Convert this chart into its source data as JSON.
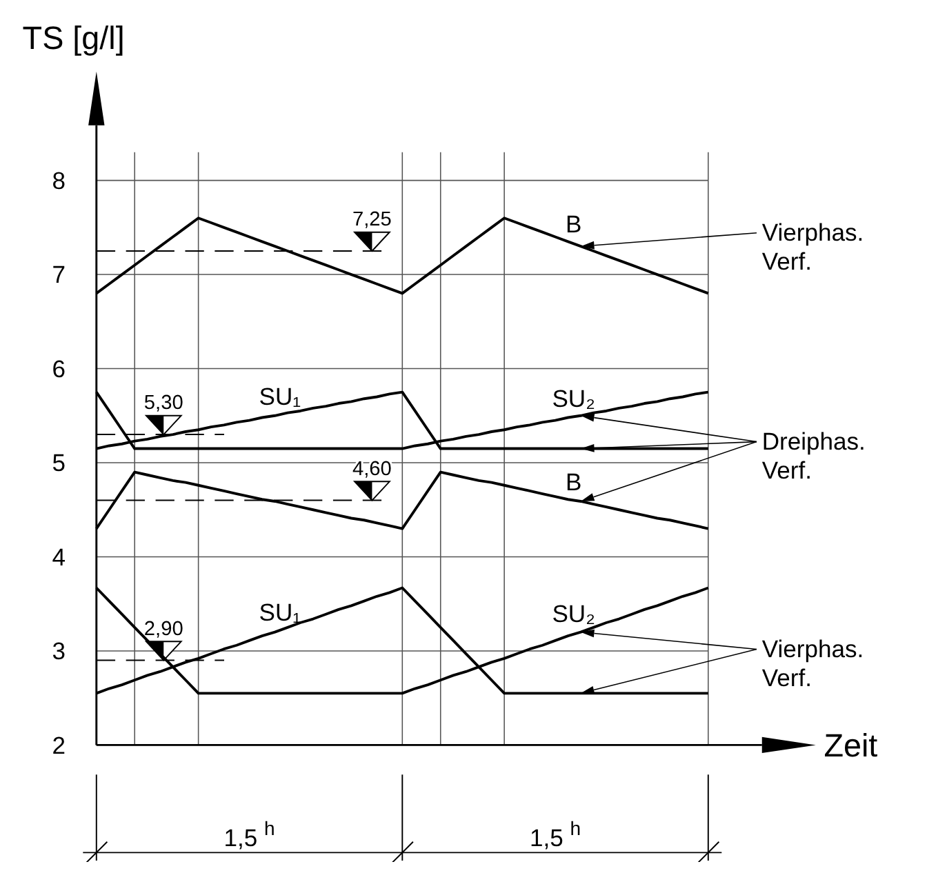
{
  "chart_data": {
    "type": "line",
    "xlabel": "Zeit",
    "ylabel": "TS [g/l]",
    "ylim": [
      2,
      8.3
    ],
    "yticks": [
      2,
      3,
      4,
      5,
      6,
      7,
      8
    ],
    "categories": [
      null,
      null,
      null,
      null,
      null,
      null,
      null,
      null,
      null,
      null,
      null,
      null,
      null,
      null,
      null,
      null,
      null,
      null,
      null,
      null,
      null,
      null,
      null,
      null,
      null,
      null,
      null,
      null,
      null,
      null,
      null,
      null,
      null,
      null,
      null,
      null,
      null,
      null,
      null,
      null,
      null,
      null,
      null,
      null,
      null,
      null,
      null,
      null,
      null
    ],
    "grid": true,
    "marker": "none",
    "line_style": "solid",
    "series": [
      {
        "name": "Vierphas. Verf.",
        "color": "#000000",
        "values": [
          6.8,
          6.9,
          7,
          7.1,
          7.2,
          7.3,
          7.4,
          7.5,
          7.6,
          7.55,
          7.5,
          7.45,
          7.4,
          7.35,
          7.3,
          7.25,
          7.2,
          7.15,
          7.1,
          7.05,
          7,
          6.95,
          6.9,
          6.85,
          6.8,
          6.9,
          7,
          7.1,
          7.2,
          7.3,
          7.4,
          7.5,
          7.6,
          7.55,
          7.5,
          7.45,
          7.4,
          7.35,
          7.3,
          7.25,
          7.2,
          7.15,
          7.1,
          7.05,
          7,
          6.95,
          6.9,
          6.85,
          6.8
        ]
      },
      {
        "name": "Dreiphas. Verf.",
        "color": "#000000",
        "values": [
          5.75,
          5.55,
          5.35,
          5.15,
          5.15,
          5.15,
          5.15,
          5.15,
          5.15,
          5.15,
          5.15,
          5.15,
          5.15,
          5.15,
          5.15,
          5.15,
          5.15,
          5.15,
          5.15,
          5.15,
          5.15,
          5.15,
          5.15,
          5.15,
          5.15,
          5.18,
          5.2,
          5.23,
          5.25,
          5.28,
          5.3,
          5.33,
          5.35,
          5.38,
          5.4,
          5.43,
          5.45,
          5.48,
          5.5,
          5.53,
          5.55,
          5.58,
          5.6,
          5.63,
          5.65,
          5.68,
          5.7,
          5.73,
          5.75
        ]
      },
      {
        "color": "#000000",
        "values": [
          5.15,
          5.18,
          5.2,
          5.23,
          5.25,
          5.28,
          5.3,
          5.33,
          5.35,
          5.38,
          5.4,
          5.43,
          5.45,
          5.48,
          5.5,
          5.53,
          5.55,
          5.58,
          5.6,
          5.63,
          5.65,
          5.68,
          5.7,
          5.73,
          5.75,
          5.55,
          5.35,
          5.15,
          5.15,
          5.15,
          5.15,
          5.15,
          5.15,
          5.15,
          5.15,
          5.15,
          5.15,
          5.15,
          5.15,
          5.15,
          5.15,
          5.15,
          5.15,
          5.15,
          5.15,
          5.15,
          5.15,
          5.15,
          5.15
        ]
      },
      {
        "color": "#000000",
        "values": [
          4.3,
          4.5,
          4.7,
          4.9,
          4.87,
          4.84,
          4.81,
          4.79,
          4.76,
          4.73,
          4.7,
          4.67,
          4.64,
          4.61,
          4.59,
          4.56,
          4.53,
          4.5,
          4.47,
          4.44,
          4.41,
          4.39,
          4.36,
          4.33,
          4.3,
          4.5,
          4.7,
          4.9,
          4.87,
          4.84,
          4.81,
          4.79,
          4.76,
          4.73,
          4.7,
          4.67,
          4.64,
          4.61,
          4.59,
          4.56,
          4.53,
          4.5,
          4.47,
          4.44,
          4.41,
          4.39,
          4.36,
          4.33,
          4.3
        ]
      },
      {
        "name": "Vierphas. Verf.",
        "color": "#000000",
        "values": [
          2.55,
          2.6,
          2.64,
          2.69,
          2.74,
          2.78,
          2.83,
          2.88,
          2.92,
          2.97,
          3.02,
          3.06,
          3.11,
          3.16,
          3.2,
          3.25,
          3.3,
          3.34,
          3.39,
          3.44,
          3.48,
          3.53,
          3.58,
          3.62,
          3.67,
          3.53,
          3.39,
          3.25,
          3.11,
          2.97,
          2.83,
          2.69,
          2.55,
          2.55,
          2.55,
          2.55,
          2.55,
          2.55,
          2.55,
          2.55,
          2.55,
          2.55,
          2.55,
          2.55,
          2.55,
          2.55,
          2.55,
          2.55,
          2.55
        ]
      },
      {
        "color": "#000000",
        "values": [
          3.67,
          3.53,
          3.39,
          3.25,
          3.11,
          2.97,
          2.83,
          2.69,
          2.55,
          2.55,
          2.55,
          2.55,
          2.55,
          2.55,
          2.55,
          2.55,
          2.55,
          2.55,
          2.55,
          2.55,
          2.55,
          2.55,
          2.55,
          2.55,
          2.55,
          2.6,
          2.64,
          2.69,
          2.74,
          2.78,
          2.83,
          2.88,
          2.92,
          2.97,
          3.02,
          3.06,
          3.11,
          3.16,
          3.2,
          3.25,
          3.3,
          3.34,
          3.39,
          3.44,
          3.48,
          3.53,
          3.58,
          3.62,
          3.67
        ]
      }
    ],
    "ref_lines": [
      {
        "axis": "y",
        "value": 7.25,
        "label": "7,25",
        "color": "#000000",
        "line_style": "dashed"
      },
      {
        "axis": "y",
        "value": 5.3,
        "label": "5,30",
        "color": "#000000",
        "line_style": "dashed"
      },
      {
        "axis": "y",
        "value": 4.6,
        "label": "4,60",
        "color": "#000000",
        "line_style": "dashed"
      },
      {
        "axis": "y",
        "value": 2.9,
        "label": "2,90",
        "color": "#000000",
        "line_style": "dashed"
      }
    ],
    "annotations": [
      {
        "text": "B",
        "y": 7.33
      },
      {
        "text": "SU₁",
        "y": 5.5
      },
      {
        "text": "SU₂",
        "y": 5.48
      },
      {
        "text": "B",
        "y": 4.59
      },
      {
        "text": "SU₁",
        "y": 3.21
      },
      {
        "text": "SU₂",
        "y": 3.19
      },
      "1,5 $^{h}$",
      "1,5 $^{h}$"
    ]
  }
}
